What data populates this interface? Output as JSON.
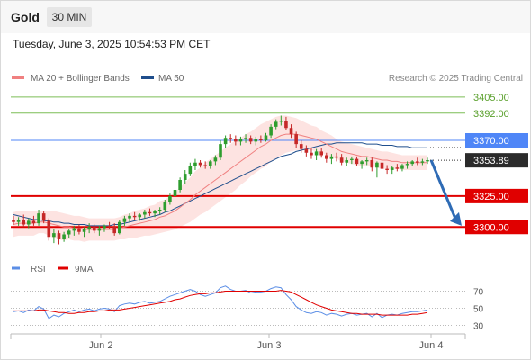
{
  "header": {
    "instrument": "Gold",
    "timeframe": "30 MIN",
    "timestamp": "Tuesday, June 3, 2025 10:54:53 PM CET"
  },
  "legend": {
    "ma20_bb_label": "MA 20 + Bollinger Bands",
    "ma50_label": "MA 50",
    "source": "Research © 2025 Trading Central",
    "colors": {
      "ma20": "#f08080",
      "ma50": "#1f4e8c",
      "bands": "#fde3e1"
    }
  },
  "levels": [
    {
      "value": 3405.0,
      "label": "3405.00",
      "kind": "resistance-minor",
      "color": "#7cbd56"
    },
    {
      "value": 3392.0,
      "label": "3392.00",
      "kind": "resistance-minor",
      "color": "#7cbd56"
    },
    {
      "value": 3370.0,
      "label": "3370.00",
      "kind": "pivot",
      "color": "#4f86f7"
    },
    {
      "value": 3325.0,
      "label": "3325.00",
      "kind": "target-1",
      "color": "#e00000"
    },
    {
      "value": 3300.0,
      "label": "3300.00",
      "kind": "target-2",
      "color": "#e00000"
    }
  ],
  "last_price": {
    "value": 3353.89,
    "label": "3353.89"
  },
  "forecast_arrow": {
    "from": 3354,
    "to": 3301,
    "direction": "down",
    "color": "#2e6bb5"
  },
  "rsi": {
    "rsi_label": "RSI",
    "ma_label": "9MA",
    "colors": {
      "rsi": "#5b8ee6",
      "ma": "#e00000"
    },
    "levels": [
      "70",
      "50",
      "30"
    ]
  },
  "x_axis": {
    "ticks": [
      "Jun 2",
      "Jun 3",
      "Jun 4"
    ]
  },
  "chart_data": {
    "type": "candlestick",
    "price_range": [
      3282,
      3410
    ],
    "candles": [
      [
        3306,
        3309,
        3302,
        3304
      ],
      [
        3304,
        3308,
        3301,
        3306
      ],
      [
        3306,
        3310,
        3300,
        3302
      ],
      [
        3302,
        3307,
        3299,
        3305
      ],
      [
        3305,
        3309,
        3301,
        3303
      ],
      [
        3303,
        3314,
        3301,
        3311
      ],
      [
        3311,
        3313,
        3303,
        3305
      ],
      [
        3305,
        3307,
        3289,
        3292
      ],
      [
        3292,
        3298,
        3287,
        3295
      ],
      [
        3295,
        3297,
        3286,
        3290
      ],
      [
        3290,
        3296,
        3288,
        3294
      ],
      [
        3294,
        3298,
        3291,
        3297
      ],
      [
        3297,
        3301,
        3293,
        3299
      ],
      [
        3299,
        3302,
        3294,
        3296
      ],
      [
        3296,
        3300,
        3292,
        3298
      ],
      [
        3298,
        3303,
        3295,
        3300
      ],
      [
        3300,
        3302,
        3295,
        3297
      ],
      [
        3297,
        3301,
        3293,
        3299
      ],
      [
        3299,
        3302,
        3296,
        3301
      ],
      [
        3301,
        3304,
        3298,
        3300
      ],
      [
        3300,
        3303,
        3293,
        3295
      ],
      [
        3295,
        3306,
        3294,
        3304
      ],
      [
        3304,
        3309,
        3301,
        3307
      ],
      [
        3307,
        3311,
        3304,
        3309
      ],
      [
        3309,
        3312,
        3306,
        3308
      ],
      [
        3308,
        3311,
        3305,
        3310
      ],
      [
        3310,
        3314,
        3307,
        3312
      ],
      [
        3312,
        3315,
        3309,
        3311
      ],
      [
        3311,
        3314,
        3308,
        3313
      ],
      [
        3313,
        3316,
        3310,
        3314
      ],
      [
        3314,
        3322,
        3312,
        3320
      ],
      [
        3320,
        3327,
        3318,
        3325
      ],
      [
        3325,
        3332,
        3323,
        3330
      ],
      [
        3330,
        3340,
        3328,
        3338
      ],
      [
        3338,
        3346,
        3335,
        3343
      ],
      [
        3343,
        3352,
        3341,
        3349
      ],
      [
        3349,
        3355,
        3346,
        3352
      ],
      [
        3352,
        3354,
        3348,
        3350
      ],
      [
        3350,
        3353,
        3347,
        3349
      ],
      [
        3349,
        3354,
        3347,
        3353
      ],
      [
        3353,
        3358,
        3350,
        3356
      ],
      [
        3356,
        3370,
        3354,
        3367
      ],
      [
        3367,
        3374,
        3364,
        3372
      ],
      [
        3372,
        3375,
        3368,
        3371
      ],
      [
        3371,
        3374,
        3366,
        3369
      ],
      [
        3369,
        3373,
        3366,
        3371
      ],
      [
        3371,
        3375,
        3368,
        3372
      ],
      [
        3372,
        3374,
        3367,
        3369
      ],
      [
        3369,
        3373,
        3366,
        3371
      ],
      [
        3371,
        3374,
        3368,
        3370
      ],
      [
        3370,
        3376,
        3369,
        3374
      ],
      [
        3374,
        3383,
        3372,
        3381
      ],
      [
        3381,
        3387,
        3379,
        3385
      ],
      [
        3385,
        3390,
        3382,
        3386
      ],
      [
        3386,
        3389,
        3378,
        3380
      ],
      [
        3380,
        3383,
        3372,
        3375
      ],
      [
        3375,
        3377,
        3364,
        3367
      ],
      [
        3367,
        3370,
        3360,
        3363
      ],
      [
        3363,
        3366,
        3357,
        3360
      ],
      [
        3360,
        3364,
        3355,
        3358
      ],
      [
        3358,
        3363,
        3354,
        3361
      ],
      [
        3361,
        3364,
        3356,
        3358
      ],
      [
        3358,
        3360,
        3352,
        3355
      ],
      [
        3355,
        3359,
        3351,
        3357
      ],
      [
        3357,
        3360,
        3353,
        3356
      ],
      [
        3356,
        3359,
        3350,
        3352
      ],
      [
        3352,
        3356,
        3349,
        3354
      ],
      [
        3354,
        3357,
        3351,
        3355
      ],
      [
        3355,
        3357,
        3349,
        3351
      ],
      [
        3351,
        3354,
        3347,
        3353
      ],
      [
        3353,
        3356,
        3350,
        3354
      ],
      [
        3354,
        3356,
        3345,
        3348
      ],
      [
        3348,
        3353,
        3340,
        3352
      ],
      [
        3352,
        3354,
        3335,
        3347
      ],
      [
        3347,
        3350,
        3343,
        3346
      ],
      [
        3346,
        3349,
        3343,
        3348
      ],
      [
        3348,
        3351,
        3345,
        3347
      ],
      [
        3347,
        3351,
        3345,
        3350
      ],
      [
        3350,
        3353,
        3347,
        3351
      ],
      [
        3351,
        3354,
        3349,
        3353
      ],
      [
        3353,
        3356,
        3350,
        3352
      ],
      [
        3352,
        3355,
        3350,
        3353
      ],
      [
        3353,
        3356,
        3351,
        3354
      ]
    ],
    "ma20": [
      3302,
      3303,
      3303,
      3303,
      3303,
      3304,
      3304,
      3303,
      3302,
      3301,
      3300,
      3300,
      3299,
      3299,
      3298,
      3298,
      3298,
      3298,
      3298,
      3298,
      3298,
      3299,
      3300,
      3301,
      3302,
      3303,
      3304,
      3305,
      3306,
      3308,
      3309,
      3311,
      3313,
      3316,
      3319,
      3322,
      3326,
      3329,
      3332,
      3335,
      3338,
      3341,
      3344,
      3347,
      3350,
      3353,
      3356,
      3359,
      3362,
      3365,
      3367,
      3370,
      3372,
      3374,
      3375,
      3375,
      3375,
      3374,
      3373,
      3372,
      3371,
      3369,
      3367,
      3365,
      3363,
      3361,
      3360,
      3359,
      3358,
      3357,
      3357,
      3356,
      3355,
      3354,
      3354,
      3353,
      3353,
      3352,
      3352,
      3352,
      3352,
      3352,
      3352
    ],
    "ma50": [
      3310,
      3309,
      3308,
      3307,
      3306,
      3306,
      3305,
      3305,
      3304,
      3304,
      3303,
      3303,
      3302,
      3302,
      3302,
      3301,
      3301,
      3301,
      3301,
      3301,
      3302,
      3302,
      3303,
      3304,
      3305,
      3306,
      3307,
      3308,
      3309,
      3310,
      3312,
      3313,
      3315,
      3317,
      3319,
      3321,
      3323,
      3325,
      3327,
      3329,
      3331,
      3333,
      3335,
      3337,
      3339,
      3341,
      3343,
      3345,
      3347,
      3349,
      3351,
      3353,
      3355,
      3357,
      3358,
      3359,
      3361,
      3362,
      3363,
      3364,
      3365,
      3366,
      3367,
      3367,
      3368,
      3368,
      3368,
      3368,
      3368,
      3368,
      3367,
      3367,
      3367,
      3366,
      3366,
      3366,
      3365,
      3365,
      3365,
      3364,
      3364,
      3364,
      3364
    ],
    "bb_half_width": [
      10,
      10,
      10,
      10,
      10,
      9,
      9,
      10,
      11,
      11,
      11,
      10,
      10,
      10,
      10,
      9,
      9,
      9,
      9,
      9,
      9,
      9,
      10,
      10,
      11,
      11,
      11,
      12,
      12,
      13,
      13,
      14,
      15,
      16,
      17,
      18,
      19,
      19,
      20,
      20,
      20,
      20,
      20,
      20,
      20,
      19,
      19,
      18,
      18,
      18,
      18,
      17,
      17,
      16,
      15,
      14,
      13,
      12,
      11,
      10,
      10,
      9,
      9,
      9,
      8,
      8,
      8,
      8,
      8,
      8,
      7,
      7,
      7,
      7,
      7,
      7,
      6,
      6,
      6,
      6,
      6,
      6,
      6
    ],
    "rsi_values": [
      46,
      47,
      45,
      48,
      47,
      52,
      49,
      38,
      42,
      40,
      44,
      46,
      48,
      46,
      48,
      49,
      47,
      49,
      50,
      49,
      46,
      53,
      55,
      56,
      55,
      57,
      58,
      56,
      57,
      58,
      61,
      64,
      66,
      68,
      70,
      72,
      70,
      66,
      64,
      66,
      68,
      74,
      76,
      72,
      70,
      70,
      71,
      68,
      69,
      69,
      70,
      73,
      75,
      74,
      66,
      60,
      52,
      48,
      45,
      44,
      46,
      45,
      42,
      44,
      43,
      41,
      43,
      44,
      42,
      43,
      44,
      40,
      44,
      39,
      42,
      43,
      42,
      44,
      45,
      46,
      46,
      47,
      48
    ],
    "rsi_ma_values": [
      47,
      47,
      47,
      47,
      47,
      48,
      48,
      47,
      46,
      45,
      45,
      44,
      44,
      45,
      45,
      46,
      46,
      47,
      47,
      48,
      48,
      48,
      49,
      50,
      51,
      52,
      53,
      54,
      55,
      56,
      57,
      58,
      60,
      61,
      63,
      65,
      66,
      67,
      67,
      68,
      68,
      69,
      70,
      70,
      70,
      70,
      70,
      70,
      70,
      70,
      70,
      70,
      70,
      71,
      70,
      69,
      66,
      63,
      60,
      57,
      54,
      52,
      50,
      48,
      47,
      46,
      45,
      44,
      44,
      43,
      43,
      43,
      43,
      42,
      42,
      42,
      42,
      42,
      42,
      43,
      43,
      44,
      45
    ],
    "rsi_range": [
      20,
      80
    ]
  }
}
